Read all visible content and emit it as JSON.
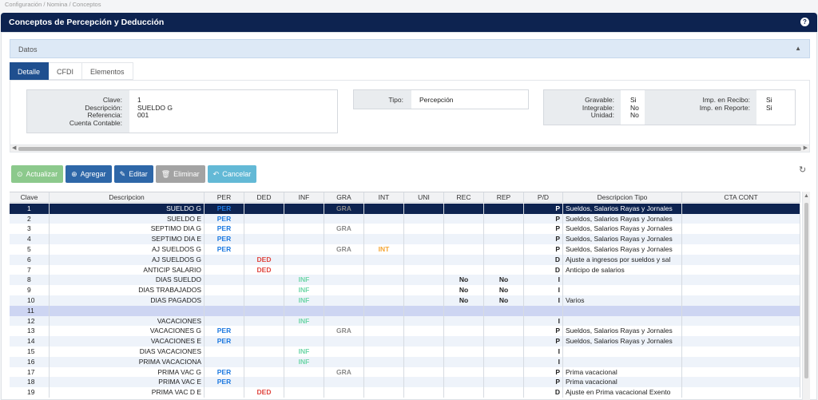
{
  "breadcrumb": "Configuración / Nomina / Conceptos",
  "window": {
    "title": "Conceptos de Percepción y Deducción",
    "help": "?"
  },
  "datos": {
    "label": "Datos",
    "collapse_icon": "chevron-up-icon"
  },
  "tabs": [
    {
      "label": "Detalle",
      "active": true
    },
    {
      "label": "CFDI",
      "active": false
    },
    {
      "label": "Elementos",
      "active": false
    }
  ],
  "detail": {
    "clave_label": "Clave:",
    "clave": "1",
    "descripcion_label": "Descripción:",
    "descripcion": "SUELDO G",
    "referencia_label": "Referencia:",
    "referencia": "001",
    "cuenta_label": "Cuenta Contable:",
    "cuenta": "",
    "tipo_label": "Tipo:",
    "tipo": "Percepción",
    "gravable_label": "Gravable:",
    "gravable": "Si",
    "integrable_label": "Integrable:",
    "integrable": "No",
    "unidad_label": "Unidad:",
    "unidad": "No",
    "imp_recibo_label": "Imp. en Recibo:",
    "imp_recibo": "Si",
    "imp_reporte_label": "Imp. en Reporte:",
    "imp_reporte": "Si"
  },
  "toolbar": {
    "actualizar": "Actualizar",
    "agregar": "Agregar",
    "editar": "Editar",
    "eliminar": "Eliminar",
    "cancelar": "Cancelar"
  },
  "grid": {
    "columns": [
      "Clave",
      "Descripcion",
      "PER",
      "DED",
      "INF",
      "GRA",
      "INT",
      "UNI",
      "REC",
      "REP",
      "P/D",
      "Descripcion Tipo",
      "CTA CONT"
    ],
    "rows": [
      {
        "clave": "1",
        "desc": "SUELDO G",
        "per": "PER",
        "ded": "",
        "inf": "",
        "gra": "GRA",
        "int": "",
        "uni": "",
        "rec": "",
        "rep": "",
        "pd": "P",
        "tipo": "Sueldos, Salarios Rayas y Jornales",
        "cta": "",
        "selected": true
      },
      {
        "clave": "2",
        "desc": "SUELDO E",
        "per": "PER",
        "ded": "",
        "inf": "",
        "gra": "",
        "int": "",
        "uni": "",
        "rec": "",
        "rep": "",
        "pd": "P",
        "tipo": "Sueldos, Salarios Rayas y Jornales",
        "cta": ""
      },
      {
        "clave": "3",
        "desc": "SEPTIMO DIA G",
        "per": "PER",
        "ded": "",
        "inf": "",
        "gra": "GRA",
        "int": "",
        "uni": "",
        "rec": "",
        "rep": "",
        "pd": "P",
        "tipo": "Sueldos, Salarios Rayas y Jornales",
        "cta": ""
      },
      {
        "clave": "4",
        "desc": "SEPTIMO DIA E",
        "per": "PER",
        "ded": "",
        "inf": "",
        "gra": "",
        "int": "",
        "uni": "",
        "rec": "",
        "rep": "",
        "pd": "P",
        "tipo": "Sueldos, Salarios Rayas y Jornales",
        "cta": ""
      },
      {
        "clave": "5",
        "desc": "AJ SUELDOS G",
        "per": "PER",
        "ded": "",
        "inf": "",
        "gra": "GRA",
        "int": "INT",
        "uni": "",
        "rec": "",
        "rep": "",
        "pd": "P",
        "tipo": "Sueldos, Salarios Rayas y Jornales",
        "cta": ""
      },
      {
        "clave": "6",
        "desc": "AJ SUELDOS G",
        "per": "",
        "ded": "DED",
        "inf": "",
        "gra": "",
        "int": "",
        "uni": "",
        "rec": "",
        "rep": "",
        "pd": "D",
        "tipo": "Ajuste a ingresos por sueldos y sal",
        "cta": ""
      },
      {
        "clave": "7",
        "desc": "ANTICIP SALARIO",
        "per": "",
        "ded": "DED",
        "inf": "",
        "gra": "",
        "int": "",
        "uni": "",
        "rec": "",
        "rep": "",
        "pd": "D",
        "tipo": "Anticipo de salarios",
        "cta": ""
      },
      {
        "clave": "8",
        "desc": "DIAS SUELDO",
        "per": "",
        "ded": "",
        "inf": "INF",
        "gra": "",
        "int": "",
        "uni": "",
        "rec": "No",
        "rep": "No",
        "pd": "I",
        "tipo": "",
        "cta": ""
      },
      {
        "clave": "9",
        "desc": "DIAS TRABAJADOS",
        "per": "",
        "ded": "",
        "inf": "INF",
        "gra": "",
        "int": "",
        "uni": "",
        "rec": "No",
        "rep": "No",
        "pd": "I",
        "tipo": "",
        "cta": ""
      },
      {
        "clave": "10",
        "desc": "DIAS PAGADOS",
        "per": "",
        "ded": "",
        "inf": "INF",
        "gra": "",
        "int": "",
        "uni": "",
        "rec": "No",
        "rep": "No",
        "pd": "I",
        "tipo": "Varios",
        "cta": ""
      },
      {
        "clave": "11",
        "desc": "",
        "per": "",
        "ded": "",
        "inf": "",
        "gra": "",
        "int": "",
        "uni": "",
        "rec": "",
        "rep": "",
        "pd": "",
        "tipo": "",
        "cta": "",
        "highlight": true
      },
      {
        "clave": "12",
        "desc": "VACACIONES",
        "per": "",
        "ded": "",
        "inf": "INF",
        "gra": "",
        "int": "",
        "uni": "",
        "rec": "",
        "rep": "",
        "pd": "I",
        "tipo": "",
        "cta": ""
      },
      {
        "clave": "13",
        "desc": "VACACIONES G",
        "per": "PER",
        "ded": "",
        "inf": "",
        "gra": "GRA",
        "int": "",
        "uni": "",
        "rec": "",
        "rep": "",
        "pd": "P",
        "tipo": "Sueldos, Salarios Rayas y Jornales",
        "cta": ""
      },
      {
        "clave": "14",
        "desc": "VACACIONES E",
        "per": "PER",
        "ded": "",
        "inf": "",
        "gra": "",
        "int": "",
        "uni": "",
        "rec": "",
        "rep": "",
        "pd": "P",
        "tipo": "Sueldos, Salarios Rayas y Jornales",
        "cta": ""
      },
      {
        "clave": "15",
        "desc": "DIAS VACACIONES",
        "per": "",
        "ded": "",
        "inf": "INF",
        "gra": "",
        "int": "",
        "uni": "",
        "rec": "",
        "rep": "",
        "pd": "I",
        "tipo": "",
        "cta": ""
      },
      {
        "clave": "16",
        "desc": "PRIMA VACACIONA",
        "per": "",
        "ded": "",
        "inf": "INF",
        "gra": "",
        "int": "",
        "uni": "",
        "rec": "",
        "rep": "",
        "pd": "I",
        "tipo": "",
        "cta": ""
      },
      {
        "clave": "17",
        "desc": "PRIMA VAC G",
        "per": "PER",
        "ded": "",
        "inf": "",
        "gra": "GRA",
        "int": "",
        "uni": "",
        "rec": "",
        "rep": "",
        "pd": "P",
        "tipo": "Prima vacacional",
        "cta": ""
      },
      {
        "clave": "18",
        "desc": "PRIMA VAC E",
        "per": "PER",
        "ded": "",
        "inf": "",
        "gra": "",
        "int": "",
        "uni": "",
        "rec": "",
        "rep": "",
        "pd": "P",
        "tipo": "Prima vacacional",
        "cta": ""
      },
      {
        "clave": "19",
        "desc": "PRIMA VAC D E",
        "per": "",
        "ded": "DED",
        "inf": "",
        "gra": "",
        "int": "",
        "uni": "",
        "rec": "",
        "rep": "",
        "pd": "D",
        "tipo": "Ajuste en Prima vacacional Exento",
        "cta": ""
      }
    ]
  }
}
